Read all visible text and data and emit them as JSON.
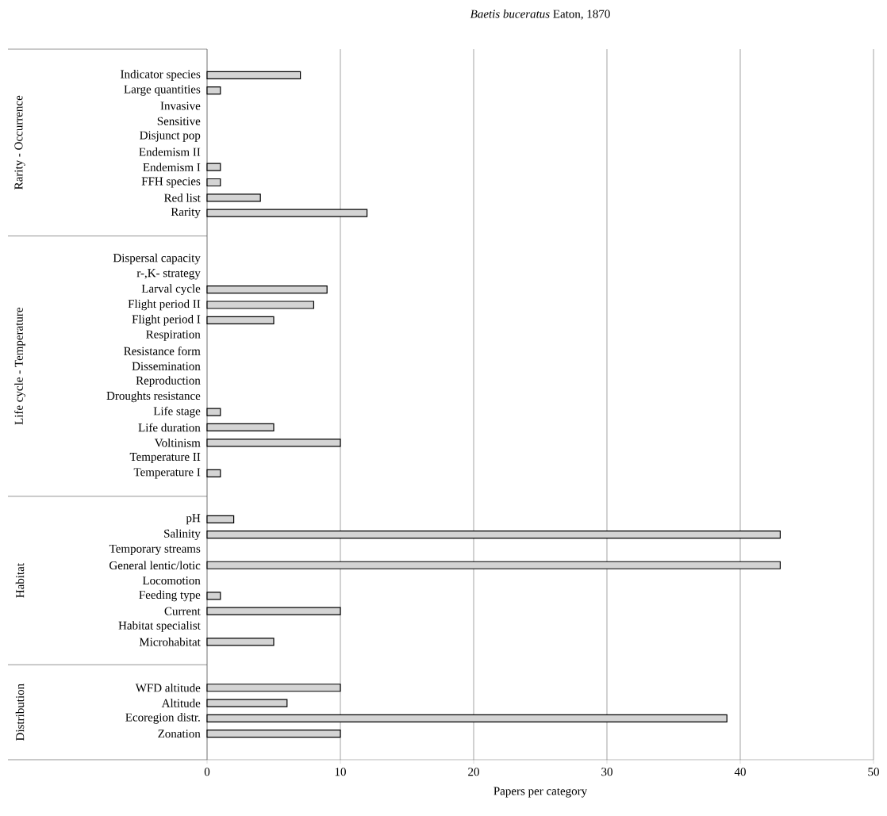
{
  "chart_data": {
    "type": "bar",
    "orientation": "horizontal",
    "title": "*Baetis buceratus* Eaton, 1870",
    "xlabel": "Papers per category",
    "categories": [
      "Indicator species",
      "Large quantities",
      "Invasive",
      "Sensitive",
      "Disjunct pop",
      "Endemism II",
      "Endemism I",
      "FFH species",
      "Red list",
      "Rarity",
      null,
      null,
      "Dispersal capacity",
      "r-,K- strategy",
      "Larval cycle",
      "Flight period II",
      "Flight period I",
      "Respiration",
      "Resistance form",
      "Dissemination",
      "Reproduction",
      "Droughts resistance",
      "Life stage",
      "Life duration",
      "Voltinism",
      "Temperature II",
      "Temperature I",
      null,
      null,
      "pH",
      "Salinity",
      "Temporary streams",
      "General lentic/lotic",
      "Locomotion",
      "Feeding type",
      "Current",
      "Habitat specialist",
      "Microhabitat",
      null,
      null,
      "WFD altitude",
      "Altitude",
      "Ecoregion distr.",
      "Zonation"
    ],
    "values": [
      7,
      1,
      0,
      0,
      0,
      0,
      1,
      1,
      4,
      12,
      null,
      null,
      0,
      0,
      9,
      8,
      5,
      0,
      0,
      0,
      0,
      0,
      1,
      5,
      10,
      0,
      1,
      null,
      null,
      2,
      43,
      0,
      43,
      0,
      1,
      10,
      0,
      5,
      null,
      null,
      10,
      6,
      39,
      10
    ],
    "color": "#d4d4d4",
    "xlim": [
      0,
      50
    ],
    "xticks": [
      0,
      10,
      20,
      30,
      40,
      50
    ],
    "grid": "x",
    "annotations": [
      "Rarity - Occurrence",
      "Life cycle - Temperature",
      "Habitat",
      "Distribution"
    ]
  }
}
